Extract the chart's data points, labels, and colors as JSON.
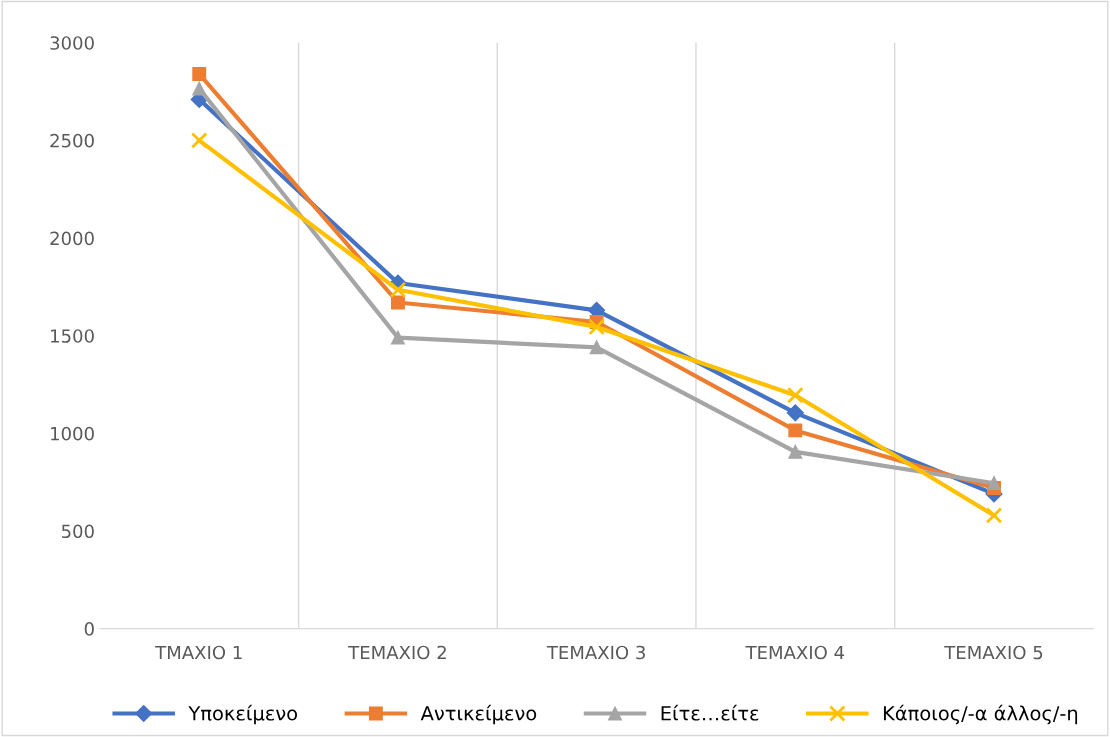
{
  "chart_data": {
    "type": "line",
    "categories": [
      "ΤΜΑΧΙΟ 1",
      "ΤΕΜΑΧΙΟ 2",
      "ΤΕΜΑΧΙΟ 3",
      "ΤΕΜΑΧΙΟ 4",
      "ΤΕΜΑΧΙΟ 5"
    ],
    "series": [
      {
        "name": "Υποκείμενο",
        "color": "#4472c4",
        "marker": "diamond",
        "values": [
          2710,
          1770,
          1630,
          1105,
          690
        ]
      },
      {
        "name": "Αντικείμενο",
        "color": "#ed7d31",
        "marker": "square",
        "values": [
          2840,
          1670,
          1570,
          1015,
          720
        ]
      },
      {
        "name": "Είτε…είτε",
        "color": "#a5a5a5",
        "marker": "triangle",
        "values": [
          2765,
          1490,
          1440,
          905,
          745
        ]
      },
      {
        "name": "Κάποιος/-α άλλος/-η",
        "color": "#ffc000",
        "marker": "cross",
        "values": [
          2500,
          1735,
          1545,
          1195,
          580
        ]
      }
    ],
    "ylim": [
      0,
      3000
    ],
    "yticks": [
      0,
      500,
      1000,
      1500,
      2000,
      2500,
      3000
    ],
    "grid": "x",
    "legend": "bottom",
    "line_style": "solid"
  }
}
